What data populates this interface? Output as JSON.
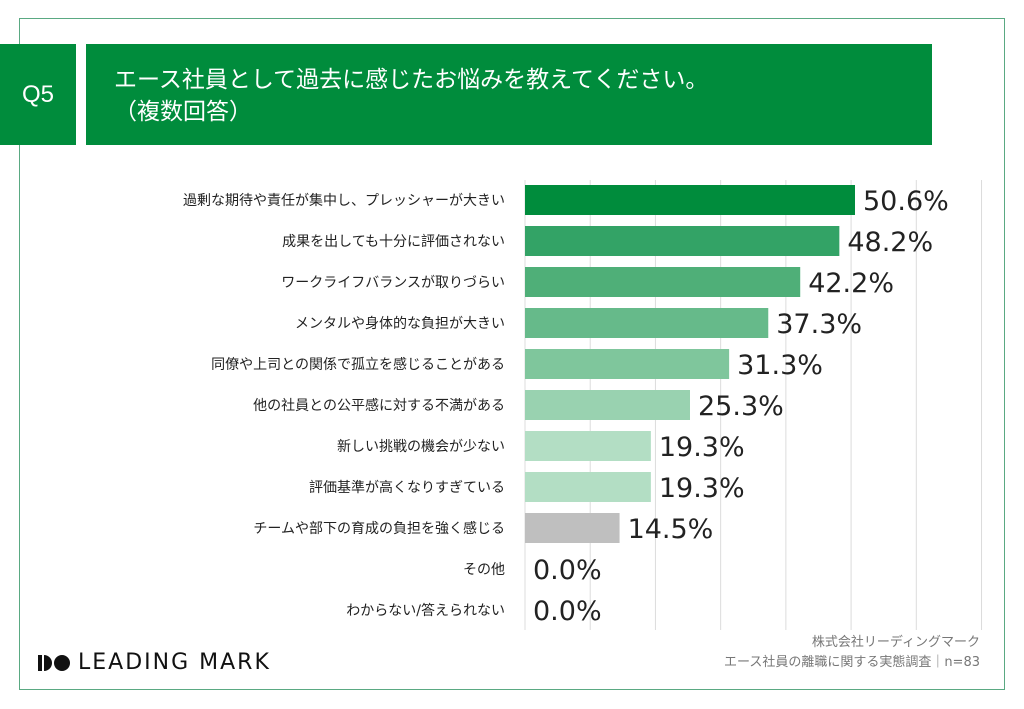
{
  "header": {
    "question_no": "Q5",
    "title_line1": "エース社員として過去に感じたお悩みを教えてください。",
    "title_line2": "（複数回答）"
  },
  "chart_data": {
    "type": "bar",
    "orientation": "horizontal",
    "categories": [
      "過剰な期待や責任が集中し、プレッシャーが大きい",
      "成果を出しても十分に評価されない",
      "ワークライフバランスが取りづらい",
      "メンタルや身体的な負担が大きい",
      "同僚や上司との関係で孤立を感じることがある",
      "他の社員との公平感に対する不満がある",
      "新しい挑戦の機会が少ない",
      "評価基準が高くなりすぎている",
      "チームや部下の育成の負担を強く感じる",
      "その他",
      "わからない/答えられない"
    ],
    "values": [
      50.6,
      48.2,
      42.2,
      37.3,
      31.3,
      25.3,
      19.3,
      19.3,
      14.5,
      0.0,
      0.0
    ],
    "labels": [
      "50.6%",
      "48.2%",
      "42.2%",
      "37.3%",
      "31.3%",
      "25.3%",
      "19.3%",
      "19.3%",
      "14.5%",
      "0.0%",
      "0.0%"
    ],
    "colors": [
      "#008c3c",
      "#33a366",
      "#4faf78",
      "#66ba8a",
      "#7fc69c",
      "#99d2b0",
      "#b3dec4",
      "#b3dec4",
      "#bfbfbf",
      "#bfbfbf",
      "#bfbfbf"
    ],
    "xlim": [
      0,
      70
    ],
    "grid": true,
    "unit": "%"
  },
  "footer": {
    "logo_text": "LEADING MARK",
    "company": "株式会社リーディングマーク",
    "survey": "エース社員の離職に関する実態調査｜n=83"
  }
}
